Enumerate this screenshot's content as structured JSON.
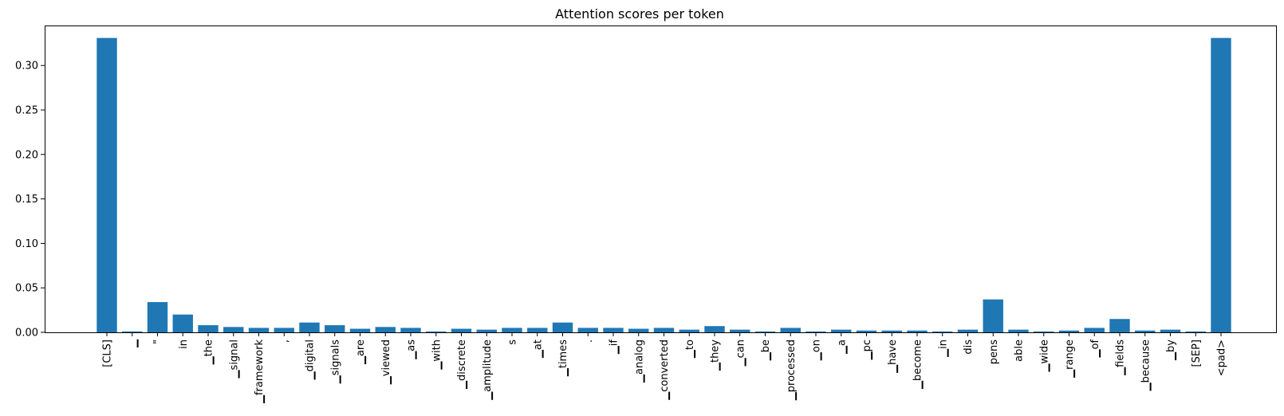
{
  "chart_data": {
    "type": "bar",
    "title": "Attention scores per token",
    "xlabel": "",
    "ylabel": "",
    "ylim": [
      0,
      0.345
    ],
    "yticks": [
      0.0,
      0.05,
      0.1,
      0.15,
      0.2,
      0.25,
      0.3
    ],
    "ytick_labels": [
      "0.00",
      "0.05",
      "0.10",
      "0.15",
      "0.20",
      "0.25",
      "0.30"
    ],
    "bar_color": "#1f77b4",
    "categories": [
      "[CLS]",
      "▁",
      "\"",
      "in",
      "▁the",
      "▁signal",
      "▁framework",
      ",",
      "▁digital",
      "▁signals",
      "▁are",
      "▁viewed",
      "▁as",
      "▁with",
      "▁discrete",
      "▁amplitude",
      "s",
      "▁at",
      "▁times",
      ".",
      "▁if",
      "▁analog",
      "▁converted",
      "▁to",
      "▁they",
      "▁can",
      "▁be",
      "▁processed",
      "▁on",
      "▁a",
      "▁pc",
      "▁have",
      "▁become",
      "▁in",
      "dis",
      "pens",
      "able",
      "▁wide",
      "▁range",
      "▁of",
      "▁fields",
      "▁because",
      "▁by",
      "[SEP]",
      "<pad>"
    ],
    "values": [
      0.331,
      0.001,
      0.034,
      0.02,
      0.008,
      0.006,
      0.005,
      0.005,
      0.011,
      0.008,
      0.004,
      0.006,
      0.005,
      0.001,
      0.004,
      0.003,
      0.005,
      0.005,
      0.011,
      0.005,
      0.005,
      0.004,
      0.005,
      0.003,
      0.007,
      0.003,
      0.001,
      0.005,
      0.001,
      0.003,
      0.002,
      0.002,
      0.002,
      0.001,
      0.003,
      0.037,
      0.003,
      0.001,
      0.002,
      0.005,
      0.015,
      0.002,
      0.003,
      0.001,
      0.331
    ]
  }
}
